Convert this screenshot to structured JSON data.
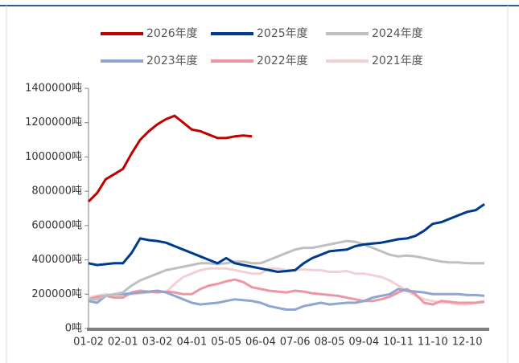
{
  "chart_data": {
    "type": "line",
    "categories": [
      "01-02",
      null,
      null,
      null,
      "02-01",
      null,
      null,
      null,
      "03-02",
      null,
      null,
      null,
      "04-01",
      null,
      null,
      null,
      "05-05",
      null,
      null,
      null,
      "06-04",
      null,
      null,
      null,
      "07-06",
      null,
      null,
      null,
      "08-05",
      null,
      null,
      null,
      "09-04",
      null,
      null,
      null,
      "10-11",
      null,
      null,
      null,
      "11-10",
      null,
      null,
      null,
      "12-10",
      null,
      null
    ],
    "series": [
      {
        "name": "2026年度",
        "color": "#c00000",
        "values": [
          740000,
          790000,
          870000,
          900000,
          930000,
          1020000,
          1100000,
          1150000,
          1190000,
          1220000,
          1240000,
          1200000,
          1160000,
          1150000,
          1130000,
          1110000,
          1110000,
          1120000,
          1125000,
          1120000,
          null,
          null,
          null,
          null,
          null,
          null,
          null,
          null,
          null,
          null,
          null,
          null,
          null,
          null,
          null,
          null,
          null,
          null,
          null,
          null,
          null,
          null,
          null,
          null,
          null,
          null,
          null
        ]
      },
      {
        "name": "2025年度",
        "color": "#003a8c",
        "values": [
          380000,
          370000,
          375000,
          380000,
          380000,
          440000,
          525000,
          515000,
          510000,
          500000,
          480000,
          460000,
          440000,
          420000,
          400000,
          380000,
          410000,
          380000,
          370000,
          360000,
          350000,
          340000,
          330000,
          335000,
          340000,
          380000,
          410000,
          430000,
          450000,
          455000,
          460000,
          480000,
          490000,
          495000,
          500000,
          510000,
          520000,
          525000,
          540000,
          570000,
          610000,
          620000,
          640000,
          660000,
          680000,
          690000,
          725000
        ]
      },
      {
        "name": "2024年度",
        "color": "#bfbfbf",
        "values": [
          170000,
          170000,
          190000,
          200000,
          210000,
          250000,
          280000,
          300000,
          320000,
          340000,
          350000,
          360000,
          370000,
          380000,
          380000,
          375000,
          380000,
          390000,
          390000,
          380000,
          380000,
          400000,
          420000,
          440000,
          460000,
          470000,
          470000,
          480000,
          490000,
          500000,
          510000,
          505000,
          490000,
          470000,
          450000,
          430000,
          420000,
          425000,
          420000,
          410000,
          400000,
          390000,
          385000,
          385000,
          380000,
          380000,
          380000
        ]
      },
      {
        "name": "2023年度",
        "color": "#8fa6cf",
        "values": [
          160000,
          150000,
          190000,
          200000,
          200000,
          205000,
          210000,
          215000,
          220000,
          210000,
          190000,
          170000,
          150000,
          140000,
          145000,
          150000,
          160000,
          170000,
          165000,
          160000,
          150000,
          130000,
          120000,
          110000,
          110000,
          130000,
          140000,
          150000,
          140000,
          145000,
          150000,
          150000,
          160000,
          180000,
          190000,
          200000,
          230000,
          220000,
          215000,
          210000,
          200000,
          200000,
          200000,
          200000,
          195000,
          195000,
          190000
        ]
      },
      {
        "name": "2022年度",
        "color": "#ee97a4",
        "values": [
          170000,
          185000,
          190000,
          180000,
          180000,
          210000,
          220000,
          215000,
          210000,
          215000,
          210000,
          200000,
          200000,
          230000,
          250000,
          260000,
          275000,
          285000,
          270000,
          240000,
          230000,
          220000,
          215000,
          210000,
          220000,
          215000,
          205000,
          200000,
          195000,
          190000,
          180000,
          170000,
          160000,
          160000,
          170000,
          185000,
          210000,
          230000,
          200000,
          150000,
          140000,
          160000,
          155000,
          150000,
          150000,
          150000,
          155000
        ]
      },
      {
        "name": "2021年度",
        "color": "#f2d0d4",
        "values": [
          180000,
          190000,
          200000,
          190000,
          190000,
          200000,
          205000,
          210000,
          220000,
          210000,
          260000,
          300000,
          320000,
          340000,
          350000,
          350000,
          350000,
          340000,
          330000,
          320000,
          320000,
          350000,
          350000,
          340000,
          340000,
          345000,
          340000,
          340000,
          330000,
          330000,
          335000,
          320000,
          320000,
          310000,
          300000,
          280000,
          250000,
          220000,
          190000,
          170000,
          160000,
          150000,
          150000,
          140000,
          140000,
          150000,
          160000
        ]
      }
    ],
    "ylim": [
      0,
      1400000
    ],
    "yticks": [
      {
        "value": 0,
        "label": "0吨"
      },
      {
        "value": 200000,
        "label": "200000吨"
      },
      {
        "value": 400000,
        "label": "400000吨"
      },
      {
        "value": 600000,
        "label": "600000吨"
      },
      {
        "value": 800000,
        "label": "800000吨"
      },
      {
        "value": 1000000,
        "label": "1000000吨"
      },
      {
        "value": 1200000,
        "label": "1200000吨"
      },
      {
        "value": 1400000,
        "label": "1400000吨"
      }
    ]
  }
}
